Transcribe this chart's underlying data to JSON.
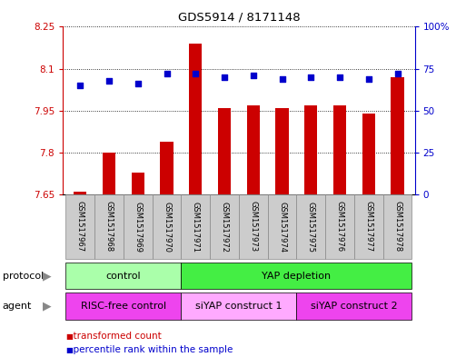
{
  "title": "GDS5914 / 8171148",
  "samples": [
    "GSM1517967",
    "GSM1517968",
    "GSM1517969",
    "GSM1517970",
    "GSM1517971",
    "GSM1517972",
    "GSM1517973",
    "GSM1517974",
    "GSM1517975",
    "GSM1517976",
    "GSM1517977",
    "GSM1517978"
  ],
  "transformed_count": [
    7.66,
    7.8,
    7.73,
    7.84,
    8.19,
    7.96,
    7.97,
    7.96,
    7.97,
    7.97,
    7.94,
    8.07
  ],
  "percentile_rank": [
    65,
    68,
    66,
    72,
    72,
    70,
    71,
    69,
    70,
    70,
    69,
    72
  ],
  "ylim_left": [
    7.65,
    8.25
  ],
  "ylim_right": [
    0,
    100
  ],
  "yticks_left": [
    7.65,
    7.8,
    7.95,
    8.1,
    8.25
  ],
  "yticks_right": [
    0,
    25,
    50,
    75,
    100
  ],
  "ytick_labels_left": [
    "7.65",
    "7.8",
    "7.95",
    "8.1",
    "8.25"
  ],
  "ytick_labels_right": [
    "0",
    "25",
    "50",
    "75",
    "100%"
  ],
  "bar_color": "#cc0000",
  "dot_color": "#0000cc",
  "bar_bottom": 7.65,
  "protocol_groups": [
    {
      "label": "control",
      "start": 0,
      "end": 4,
      "color": "#aaffaa"
    },
    {
      "label": "YAP depletion",
      "start": 4,
      "end": 12,
      "color": "#44ee44"
    }
  ],
  "agent_groups": [
    {
      "label": "RISC-free control",
      "start": 0,
      "end": 4,
      "color": "#ee44ee"
    },
    {
      "label": "siYAP construct 1",
      "start": 4,
      "end": 8,
      "color": "#ffaaff"
    },
    {
      "label": "siYAP construct 2",
      "start": 8,
      "end": 12,
      "color": "#ee44ee"
    }
  ],
  "legend_items": [
    {
      "label": "transformed count",
      "color": "#cc0000"
    },
    {
      "label": "percentile rank within the sample",
      "color": "#0000cc"
    }
  ],
  "bar_width": 0.45,
  "protocol_label": "protocol",
  "agent_label": "agent",
  "chart_bg": "#ffffff",
  "fig_bg": "#ffffff"
}
